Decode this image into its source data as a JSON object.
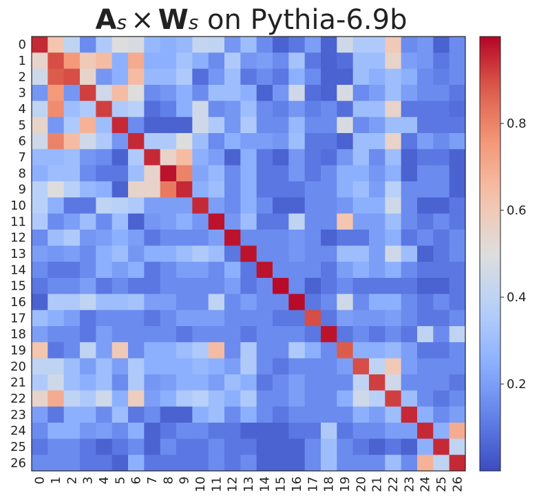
{
  "chart_data": {
    "type": "heatmap",
    "title": "A_s × W_s on Pythia-6.9b",
    "title_parts": {
      "a": "A",
      "s1": "s",
      "times": "×",
      "w": "W",
      "s2": "s",
      "rest": " on Pythia-6.9b"
    },
    "rows": [
      "0",
      "1",
      "2",
      "3",
      "4",
      "5",
      "6",
      "7",
      "8",
      "9",
      "10",
      "11",
      "12",
      "13",
      "14",
      "15",
      "16",
      "17",
      "18",
      "19",
      "20",
      "21",
      "22",
      "23",
      "24",
      "25",
      "26"
    ],
    "cols": [
      "0",
      "1",
      "2",
      "3",
      "4",
      "5",
      "6",
      "7",
      "8",
      "9",
      "10",
      "11",
      "12",
      "13",
      "14",
      "15",
      "16",
      "17",
      "18",
      "19",
      "20",
      "21",
      "22",
      "23",
      "24",
      "25",
      "26"
    ],
    "colormap": "coolwarm",
    "vmin": 0.0,
    "vmax": 1.0,
    "colorbar_ticks": [
      0.2,
      0.4,
      0.6,
      0.8
    ],
    "colorbar_tick_labels": [
      "0.2",
      "0.4",
      "0.6",
      "0.8"
    ],
    "values": [
      [
        0.95,
        0.62,
        0.4,
        0.15,
        0.35,
        0.5,
        0.48,
        0.28,
        0.25,
        0.28,
        0.42,
        0.4,
        0.18,
        0.3,
        0.15,
        0.05,
        0.1,
        0.2,
        0.05,
        0.45,
        0.35,
        0.35,
        0.6,
        0.15,
        0.18,
        0.05,
        0.15
      ],
      [
        0.55,
        0.9,
        0.75,
        0.6,
        0.65,
        0.25,
        0.7,
        0.25,
        0.25,
        0.32,
        0.25,
        0.15,
        0.35,
        0.18,
        0.2,
        0.15,
        0.32,
        0.1,
        0.05,
        0.08,
        0.3,
        0.3,
        0.55,
        0.2,
        0.18,
        0.1,
        0.15
      ],
      [
        0.45,
        0.88,
        0.9,
        0.55,
        0.18,
        0.25,
        0.65,
        0.28,
        0.28,
        0.35,
        0.08,
        0.18,
        0.3,
        0.1,
        0.15,
        0.1,
        0.25,
        0.15,
        0.05,
        0.05,
        0.3,
        0.25,
        0.3,
        0.25,
        0.15,
        0.12,
        0.15
      ],
      [
        0.18,
        0.75,
        0.18,
        0.92,
        0.45,
        0.65,
        0.5,
        0.15,
        0.18,
        0.25,
        0.15,
        0.3,
        0.3,
        0.25,
        0.05,
        0.18,
        0.45,
        0.08,
        0.05,
        0.48,
        0.15,
        0.2,
        0.3,
        0.2,
        0.15,
        0.15,
        0.1
      ],
      [
        0.4,
        0.78,
        0.3,
        0.35,
        0.92,
        0.35,
        0.38,
        0.08,
        0.12,
        0.25,
        0.45,
        0.15,
        0.18,
        0.3,
        0.15,
        0.12,
        0.18,
        0.12,
        0.15,
        0.08,
        0.3,
        0.3,
        0.55,
        0.1,
        0.1,
        0.1,
        0.08
      ],
      [
        0.55,
        0.18,
        0.35,
        0.68,
        0.3,
        0.95,
        0.15,
        0.05,
        0.05,
        0.05,
        0.45,
        0.35,
        0.18,
        0.35,
        0.15,
        0.15,
        0.28,
        0.15,
        0.15,
        0.48,
        0.15,
        0.2,
        0.3,
        0.3,
        0.1,
        0.1,
        0.1
      ],
      [
        0.45,
        0.8,
        0.65,
        0.45,
        0.35,
        0.18,
        0.95,
        0.35,
        0.35,
        0.5,
        0.3,
        0.15,
        0.25,
        0.2,
        0.2,
        0.18,
        0.3,
        0.1,
        0.1,
        0.05,
        0.3,
        0.3,
        0.55,
        0.1,
        0.2,
        0.15,
        0.2
      ],
      [
        0.28,
        0.28,
        0.3,
        0.18,
        0.15,
        0.05,
        0.35,
        0.95,
        0.55,
        0.65,
        0.25,
        0.2,
        0.05,
        0.25,
        0.1,
        0.05,
        0.18,
        0.1,
        0.08,
        0.18,
        0.3,
        0.15,
        0.3,
        0.05,
        0.1,
        0.1,
        0.05
      ],
      [
        0.25,
        0.3,
        0.3,
        0.15,
        0.1,
        0.1,
        0.3,
        0.55,
        0.98,
        0.8,
        0.22,
        0.28,
        0.15,
        0.25,
        0.1,
        0.1,
        0.18,
        0.1,
        0.15,
        0.25,
        0.25,
        0.18,
        0.25,
        0.05,
        0.15,
        0.15,
        0.05
      ],
      [
        0.38,
        0.5,
        0.38,
        0.28,
        0.25,
        0.05,
        0.55,
        0.55,
        0.82,
        0.95,
        0.25,
        0.3,
        0.15,
        0.25,
        0.1,
        0.1,
        0.1,
        0.15,
        0.15,
        0.25,
        0.3,
        0.2,
        0.38,
        0.15,
        0.15,
        0.15,
        0.05
      ],
      [
        0.38,
        0.25,
        0.1,
        0.1,
        0.4,
        0.38,
        0.35,
        0.2,
        0.2,
        0.2,
        0.95,
        0.2,
        0.15,
        0.25,
        0.15,
        0.05,
        0.05,
        0.15,
        0.15,
        0.18,
        0.25,
        0.25,
        0.45,
        0.15,
        0.05,
        0.05,
        0.1
      ],
      [
        0.35,
        0.15,
        0.2,
        0.3,
        0.15,
        0.3,
        0.05,
        0.18,
        0.2,
        0.25,
        0.18,
        0.98,
        0.18,
        0.3,
        0.1,
        0.1,
        0.4,
        0.15,
        0.15,
        0.62,
        0.2,
        0.2,
        0.3,
        0.15,
        0.1,
        0.15,
        0.1
      ],
      [
        0.15,
        0.3,
        0.35,
        0.18,
        0.2,
        0.25,
        0.2,
        0.1,
        0.15,
        0.15,
        0.15,
        0.2,
        0.98,
        0.15,
        0.15,
        0.15,
        0.18,
        0.15,
        0.05,
        0.1,
        0.1,
        0.2,
        0.25,
        0.1,
        0.15,
        0.1,
        0.15
      ],
      [
        0.2,
        0.18,
        0.2,
        0.15,
        0.25,
        0.3,
        0.18,
        0.25,
        0.25,
        0.3,
        0.35,
        0.3,
        0.1,
        0.98,
        0.15,
        0.15,
        0.18,
        0.15,
        0.15,
        0.3,
        0.3,
        0.2,
        0.45,
        0.3,
        0.05,
        0.1,
        0.15
      ],
      [
        0.15,
        0.1,
        0.1,
        0.15,
        0.25,
        0.2,
        0.25,
        0.1,
        0.15,
        0.2,
        0.2,
        0.15,
        0.25,
        0.1,
        0.98,
        0.15,
        0.15,
        0.15,
        0.1,
        0.2,
        0.25,
        0.2,
        0.25,
        0.15,
        0.1,
        0.1,
        0.1
      ],
      [
        0.1,
        0.15,
        0.15,
        0.2,
        0.1,
        0.15,
        0.1,
        0.1,
        0.15,
        0.15,
        0.15,
        0.15,
        0.2,
        0.1,
        0.15,
        0.99,
        0.15,
        0.05,
        0.1,
        0.15,
        0.1,
        0.1,
        0.1,
        0.1,
        0.05,
        0.05,
        0.1
      ],
      [
        0.05,
        0.35,
        0.35,
        0.4,
        0.3,
        0.3,
        0.32,
        0.2,
        0.2,
        0.15,
        0.15,
        0.4,
        0.15,
        0.2,
        0.15,
        0.15,
        0.99,
        0.1,
        0.15,
        0.45,
        0.15,
        0.25,
        0.25,
        0.15,
        0.1,
        0.15,
        0.1
      ],
      [
        0.3,
        0.25,
        0.2,
        0.1,
        0.15,
        0.15,
        0.15,
        0.1,
        0.15,
        0.2,
        0.2,
        0.2,
        0.15,
        0.15,
        0.15,
        0.1,
        0.1,
        0.9,
        0.1,
        0.2,
        0.18,
        0.18,
        0.2,
        0.15,
        0.1,
        0.1,
        0.15
      ],
      [
        0.2,
        0.15,
        0.15,
        0.1,
        0.2,
        0.15,
        0.15,
        0.15,
        0.15,
        0.1,
        0.15,
        0.15,
        0.15,
        0.1,
        0.15,
        0.15,
        0.15,
        0.1,
        0.98,
        0.1,
        0.15,
        0.1,
        0.15,
        0.1,
        0.4,
        0.15,
        0.4
      ],
      [
        0.62,
        0.1,
        0.15,
        0.4,
        0.2,
        0.6,
        0.15,
        0.25,
        0.25,
        0.3,
        0.35,
        0.65,
        0.15,
        0.35,
        0.15,
        0.15,
        0.35,
        0.25,
        0.15,
        0.88,
        0.25,
        0.25,
        0.28,
        0.2,
        0.1,
        0.1,
        0.15
      ],
      [
        0.4,
        0.4,
        0.3,
        0.2,
        0.3,
        0.2,
        0.35,
        0.25,
        0.25,
        0.25,
        0.28,
        0.25,
        0.2,
        0.35,
        0.15,
        0.1,
        0.15,
        0.15,
        0.15,
        0.2,
        0.9,
        0.4,
        0.6,
        0.2,
        0.15,
        0.15,
        0.15
      ],
      [
        0.35,
        0.45,
        0.3,
        0.25,
        0.3,
        0.15,
        0.35,
        0.18,
        0.2,
        0.25,
        0.25,
        0.2,
        0.3,
        0.25,
        0.1,
        0.15,
        0.2,
        0.15,
        0.15,
        0.15,
        0.4,
        0.92,
        0.45,
        0.15,
        0.15,
        0.15,
        0.1
      ],
      [
        0.55,
        0.7,
        0.4,
        0.35,
        0.45,
        0.25,
        0.58,
        0.2,
        0.25,
        0.35,
        0.38,
        0.3,
        0.25,
        0.35,
        0.15,
        0.15,
        0.2,
        0.15,
        0.15,
        0.25,
        0.45,
        0.38,
        0.92,
        0.3,
        0.15,
        0.1,
        0.15
      ],
      [
        0.2,
        0.1,
        0.25,
        0.25,
        0.15,
        0.3,
        0.1,
        0.15,
        0.05,
        0.05,
        0.25,
        0.3,
        0.15,
        0.25,
        0.15,
        0.1,
        0.15,
        0.15,
        0.15,
        0.15,
        0.25,
        0.2,
        0.3,
        0.95,
        0.25,
        0.15,
        0.2
      ],
      [
        0.15,
        0.25,
        0.25,
        0.18,
        0.2,
        0.15,
        0.25,
        0.05,
        0.1,
        0.15,
        0.15,
        0.1,
        0.1,
        0.05,
        0.05,
        0.05,
        0.1,
        0.1,
        0.35,
        0.1,
        0.15,
        0.15,
        0.2,
        0.2,
        0.95,
        0.25,
        0.7
      ],
      [
        0.1,
        0.15,
        0.15,
        0.1,
        0.05,
        0.1,
        0.15,
        0.05,
        0.15,
        0.1,
        0.1,
        0.15,
        0.1,
        0.1,
        0.05,
        0.05,
        0.05,
        0.15,
        0.3,
        0.15,
        0.1,
        0.05,
        0.1,
        0.05,
        0.25,
        0.95,
        0.4
      ],
      [
        0.15,
        0.15,
        0.15,
        0.1,
        0.1,
        0.05,
        0.25,
        0.1,
        0.1,
        0.1,
        0.1,
        0.15,
        0.1,
        0.15,
        0.05,
        0.05,
        0.05,
        0.15,
        0.3,
        0.15,
        0.15,
        0.15,
        0.3,
        0.15,
        0.68,
        0.4,
        0.95
      ]
    ]
  }
}
